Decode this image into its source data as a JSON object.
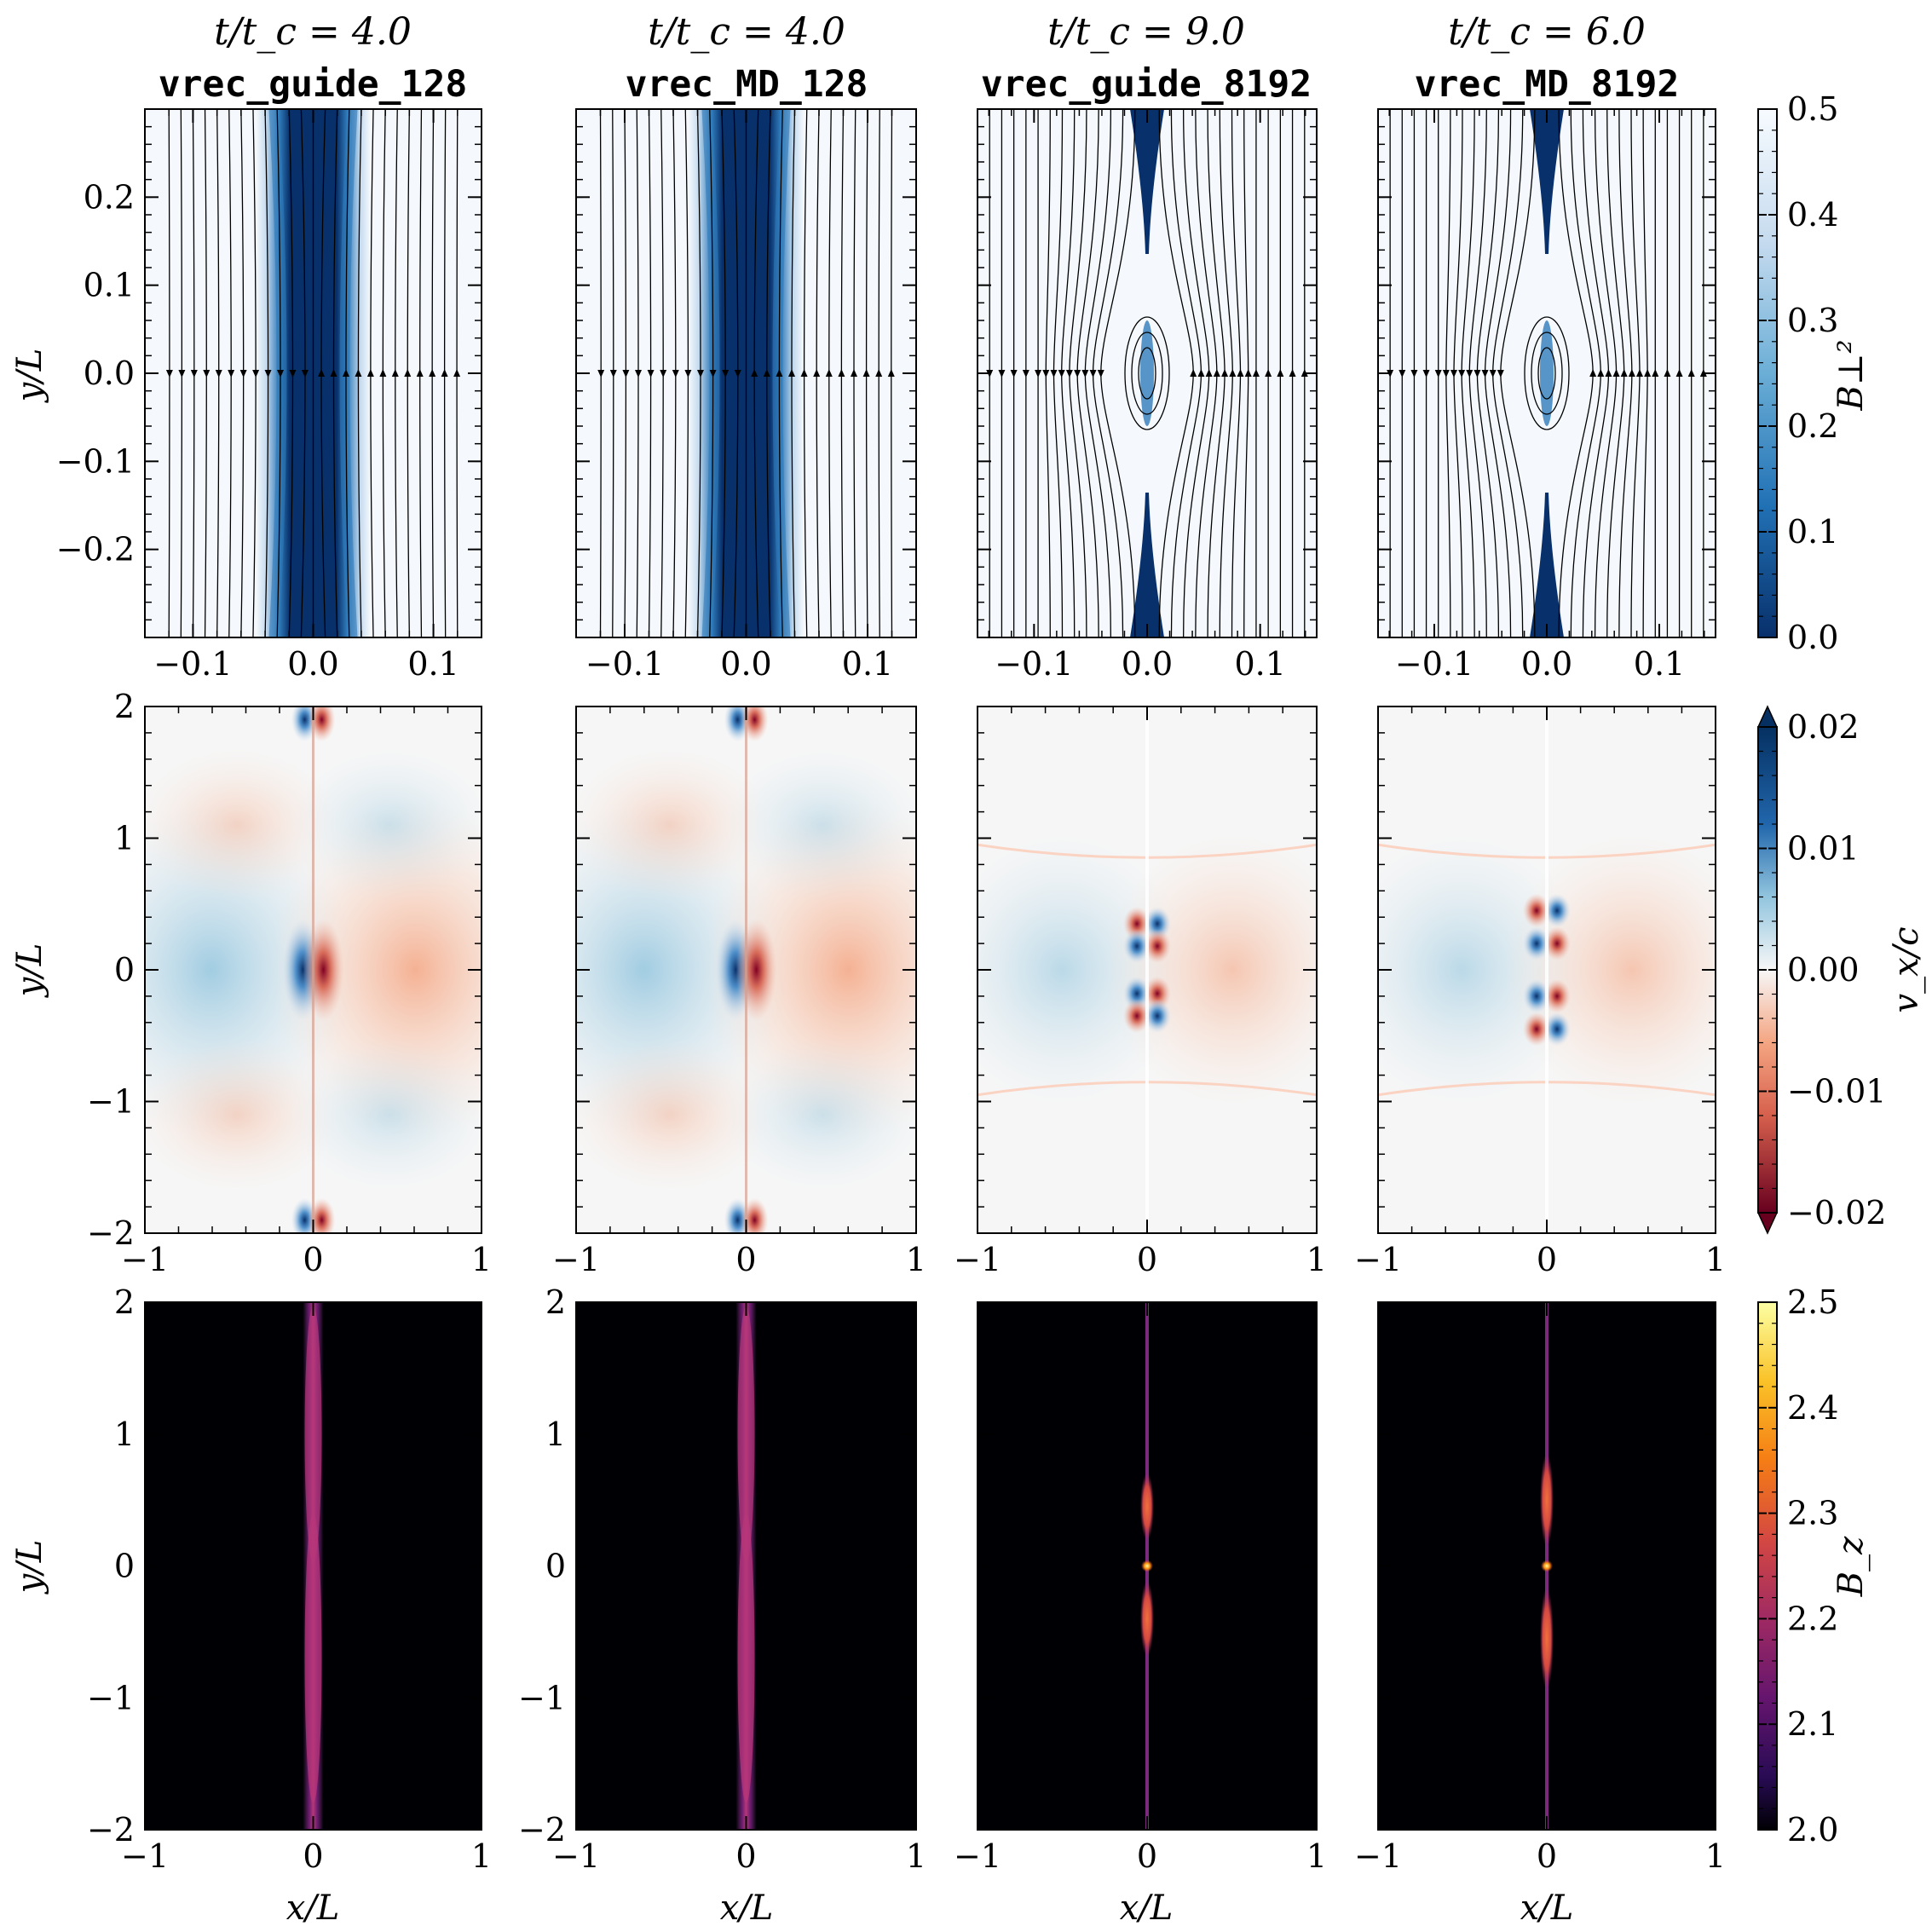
{
  "chart_data": {
    "type": "heatmap",
    "grid": {
      "rows": 3,
      "cols": 4
    },
    "columns": [
      {
        "time_label": "t/t_c = 4.0",
        "run": "vrec_guide_128",
        "resolution": "low",
        "case": "guide"
      },
      {
        "time_label": "t/t_c = 4.0",
        "run": "vrec_MD_128",
        "resolution": "low",
        "case": "MD"
      },
      {
        "time_label": "t/t_c = 9.0",
        "run": "vrec_guide_8192",
        "resolution": "high",
        "case": "guide"
      },
      {
        "time_label": "t/t_c = 6.0",
        "run": "vrec_MD_8192",
        "resolution": "high",
        "case": "MD"
      }
    ],
    "rows": [
      {
        "quantity": "B_⊥²",
        "colormap": "Blues_r",
        "colorbar": {
          "label": "B⊥²",
          "range": [
            0.0,
            0.5
          ],
          "ticks": [
            "0.0",
            "0.1",
            "0.2",
            "0.3",
            "0.4",
            "0.5"
          ],
          "extend": "neither"
        },
        "ylabel": "y/L",
        "ylim": [
          -0.3,
          0.3
        ],
        "y_ticks": [
          "−0.2",
          "−0.1",
          "0.0",
          "0.1",
          "0.2"
        ],
        "xlim_low_res": [
          -0.14,
          0.14
        ],
        "xlim_high_res": [
          -0.15,
          0.15
        ],
        "x_ticks": [
          "−0.1",
          "0.0",
          "0.1"
        ],
        "overlay": "magnetic field streamlines"
      },
      {
        "quantity": "v_x/c",
        "colormap": "RdBu",
        "colorbar": {
          "label": "v_x/c",
          "range": [
            -0.02,
            0.02
          ],
          "ticks": [
            "−0.02",
            "−0.01",
            "0.00",
            "0.01",
            "0.02"
          ],
          "extend": "both"
        },
        "ylabel": "y/L",
        "ylim": [
          -2,
          2
        ],
        "xlim": [
          -1,
          1
        ],
        "y_ticks": [
          "−2",
          "−1",
          "0",
          "1",
          "2"
        ],
        "x_ticks": [
          "−1",
          "0",
          "1"
        ]
      },
      {
        "quantity": "B_z",
        "colormap": "inferno",
        "colorbar": {
          "label": "B_z",
          "range": [
            2.0,
            2.5
          ],
          "ticks": [
            "2.0",
            "2.1",
            "2.2",
            "2.3",
            "2.4",
            "2.5"
          ],
          "extend": "neither"
        },
        "ylabel": "y/L",
        "xlabel": "x/L",
        "ylim": [
          -2,
          2
        ],
        "xlim": [
          -1,
          1
        ],
        "y_ticks": [
          "−2",
          "−1",
          "0",
          "1",
          "2"
        ],
        "x_ticks": [
          "−1",
          "0",
          "1"
        ]
      }
    ]
  },
  "colors": {
    "blue_dark": "#08306b",
    "blue_mid": "#2f7ab9",
    "blue_light": "#c6dbef",
    "blue_bg": "#f5f9fd",
    "red_dark": "#800022",
    "red_light": "#f4b8a3",
    "neutral": "#f6f6f6",
    "black": "#000004",
    "purple": "#7b2a7d",
    "magenta": "#b73779",
    "orange": "#e45a31",
    "yellow": "#fcffa4"
  }
}
